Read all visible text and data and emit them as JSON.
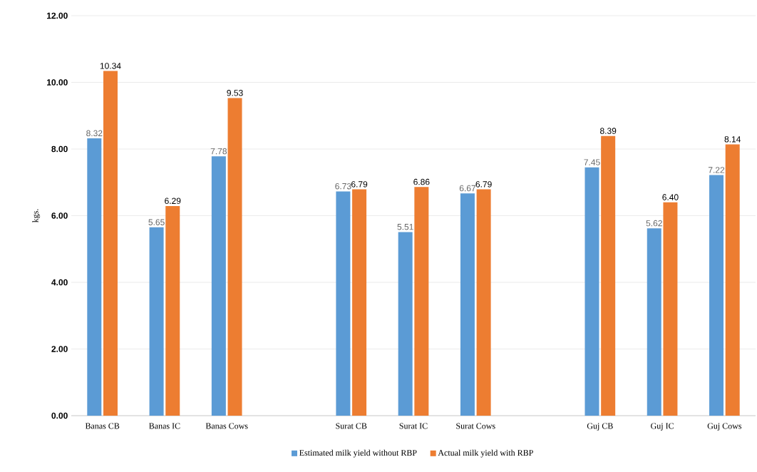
{
  "chart_data": {
    "type": "bar",
    "ylabel": "kgs.",
    "categories": [
      "Banas CB",
      "Banas IC",
      "Banas Cows",
      null,
      "Surat CB",
      "Surat IC",
      "Surat Cows",
      null,
      "Guj CB",
      "Guj IC",
      "Guj Cows"
    ],
    "series": [
      {
        "name": "Estimated milk yield without RBP",
        "color": "#5b9bd5",
        "values": [
          8.32,
          5.65,
          7.78,
          null,
          6.73,
          5.51,
          6.67,
          null,
          7.45,
          5.62,
          7.22
        ],
        "value_labels": [
          "8.32",
          "5.65",
          "7.78",
          null,
          "6.73",
          "5.51",
          "6.67",
          null,
          "7.45",
          "5.62",
          "7.22"
        ]
      },
      {
        "name": "Actual milk yield with RBP",
        "color": "#ed7d31",
        "values": [
          10.34,
          6.29,
          9.53,
          null,
          6.79,
          6.86,
          6.79,
          null,
          8.39,
          6.4,
          8.14
        ],
        "value_labels": [
          "10.34",
          "6.29",
          "9.53",
          null,
          "6.79",
          "6.86",
          "6.79",
          null,
          "8.39",
          "6.40",
          "8.14"
        ]
      }
    ],
    "ylim": [
      0,
      12
    ],
    "yticks": [
      {
        "value": 0,
        "label": "0.00"
      },
      {
        "value": 2,
        "label": "2.00"
      },
      {
        "value": 4,
        "label": "4.00"
      },
      {
        "value": 6,
        "label": "6.00"
      },
      {
        "value": 8,
        "label": "8.00"
      },
      {
        "value": 10,
        "label": "10.00"
      },
      {
        "value": 12,
        "label": "12.00"
      }
    ],
    "grid": "y",
    "legend": "bottom"
  }
}
